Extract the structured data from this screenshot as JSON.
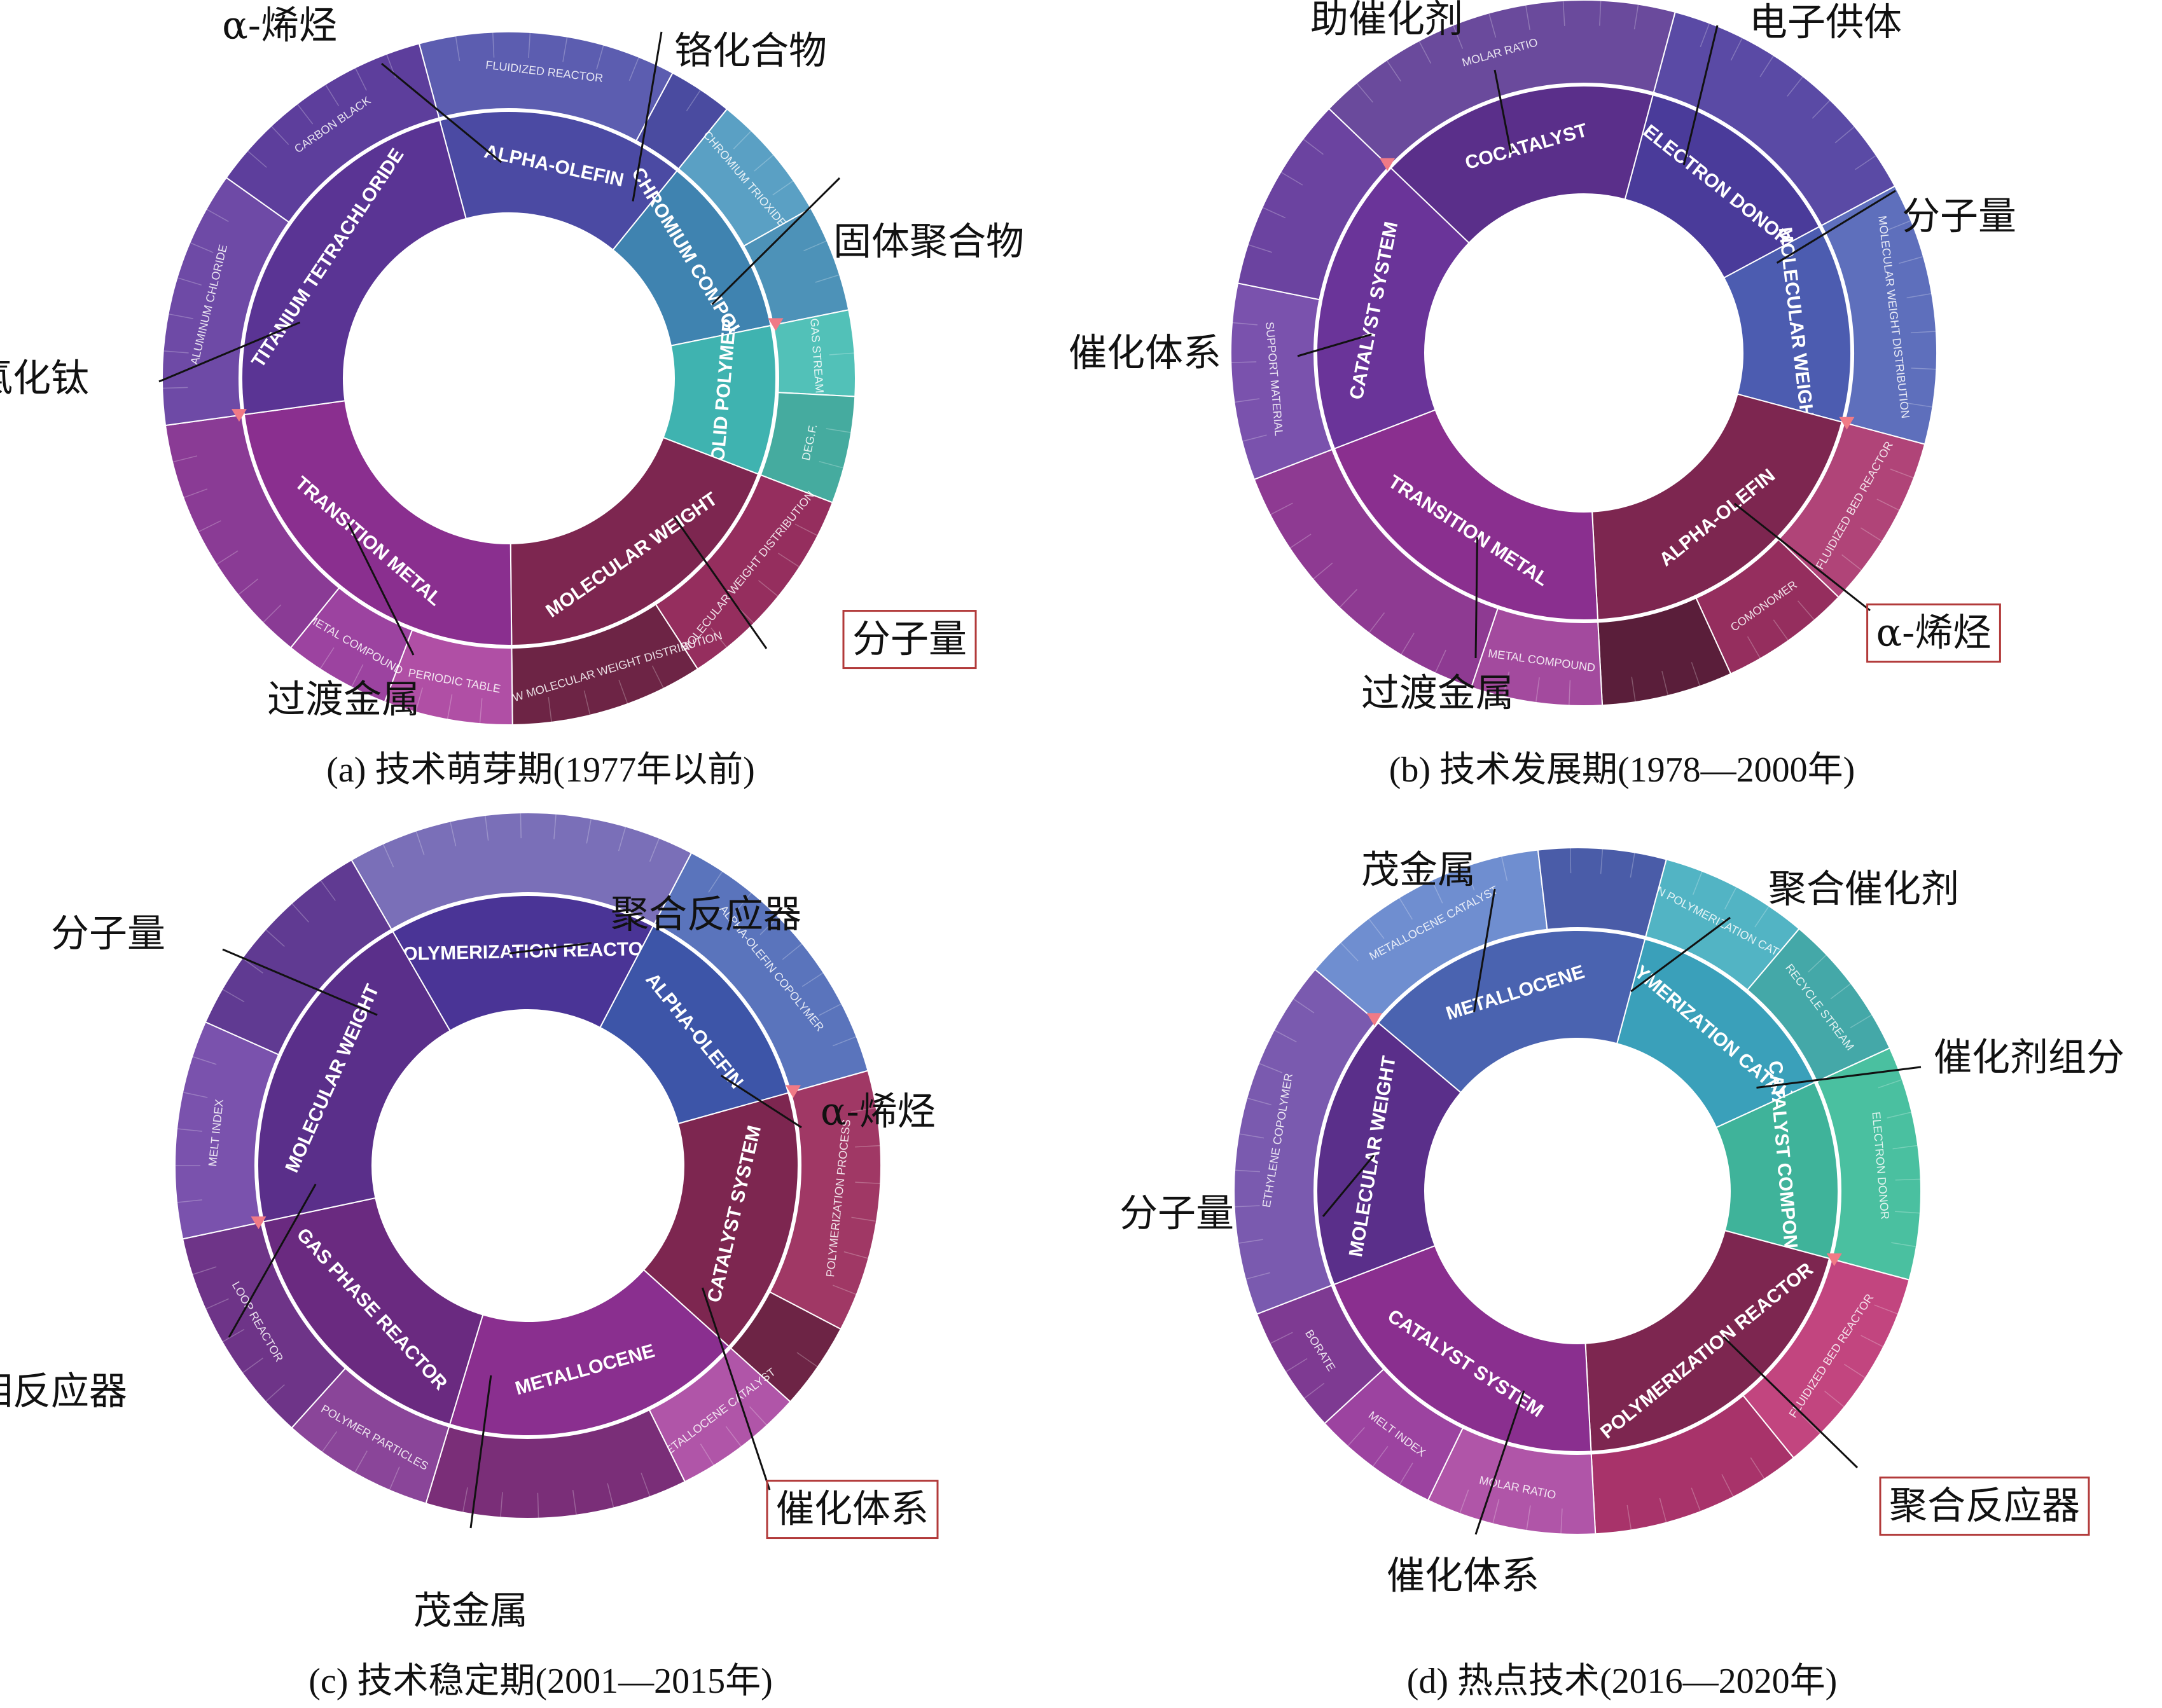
{
  "chart_data": [
    {
      "type": "sunburst",
      "caption": "(a) 技术萌芽期(1977年以前)",
      "inner": [
        {
          "label": "ALPHA-OLEFIN",
          "share": 0.15,
          "color": "#4b4aa3"
        },
        {
          "label": "CHROMIUM COMPOUND",
          "share": 0.11,
          "color": "#3f83b0"
        },
        {
          "label": "SOLID POLYMER",
          "share": 0.09,
          "color": "#3fb3b0"
        },
        {
          "label": "MOLECULAR WEIGHT",
          "share": 0.19,
          "color": "#7d2650"
        },
        {
          "label": "TRANSITION METAL",
          "share": 0.23,
          "color": "#8a2f8f"
        },
        {
          "label": "TITANIUM TETRACHLORIDE",
          "share": 0.23,
          "color": "#5a3494"
        }
      ],
      "outer": [
        {
          "label": "FLUIDIZED REACTOR",
          "parent": 0,
          "share": 0.12,
          "color": "#5c5db0"
        },
        {
          "label": "",
          "parent": 0,
          "share": 0.03,
          "color": "#4a4ba0"
        },
        {
          "label": "CHROMIUM TRIOXIDE",
          "parent": 1,
          "share": 0.06,
          "color": "#5aa0c4"
        },
        {
          "label": "",
          "parent": 1,
          "share": 0.05,
          "color": "#4d92b8"
        },
        {
          "label": "GAS STREAM",
          "parent": 2,
          "share": 0.04,
          "color": "#52c1b8"
        },
        {
          "label": "DEG.F.",
          "parent": 2,
          "share": 0.05,
          "color": "#45ab9f"
        },
        {
          "label": "MOLECULAR WEIGHT DISTRIBUTION",
          "parent": 3,
          "share": 0.1,
          "color": "#952e5e"
        },
        {
          "label": "NARROW MOLECULAR WEIGHT DISTRIBUTION",
          "parent": 3,
          "share": 0.09,
          "color": "#6d2445"
        },
        {
          "label": "PERIODIC TABLE",
          "parent": 4,
          "share": 0.06,
          "color": "#b04fa5"
        },
        {
          "label": "METAL COMPOUND",
          "parent": 4,
          "share": 0.05,
          "color": "#9c43a0"
        },
        {
          "label": "",
          "parent": 4,
          "share": 0.12,
          "color": "#8a3b95"
        },
        {
          "label": "ALUMINUM CHLORIDE",
          "parent": 5,
          "share": 0.12,
          "color": "#6e4aa6"
        },
        {
          "label": "CARBON BLACK",
          "parent": 5,
          "share": 0.11,
          "color": "#5d3e9c"
        }
      ],
      "annotations": [
        "α-烯烃",
        "铬化合物",
        "固体聚合物",
        "四氯化钛",
        "过渡金属",
        "分子量"
      ],
      "highlight": "分子量"
    },
    {
      "type": "sunburst",
      "caption": "(b) 技术发展期(1978—2000年)",
      "inner": [
        {
          "label": "ELECTRON DONOR",
          "share": 0.13,
          "color": "#4a3b9a"
        },
        {
          "label": "MOLECULAR WEIGHT",
          "share": 0.12,
          "color": "#4c5cb0"
        },
        {
          "label": "ALPHA-OLEFIN",
          "share": 0.2,
          "color": "#7d2650"
        },
        {
          "label": "TRANSITION METAL",
          "share": 0.2,
          "color": "#8a2f8f"
        },
        {
          "label": "CATALYST SYSTEM",
          "share": 0.18,
          "color": "#6a3499"
        },
        {
          "label": "COCATALYST",
          "share": 0.17,
          "color": "#5a2f8a"
        }
      ],
      "outer": [
        {
          "label": "",
          "parent": 0,
          "share": 0.13,
          "color": "#5a4aa5"
        },
        {
          "label": "MOLECULAR WEIGHT DISTRIBUTION",
          "parent": 1,
          "share": 0.12,
          "color": "#5e6fbc"
        },
        {
          "label": "FLUIDIZED BED REACTOR",
          "parent": 2,
          "share": 0.08,
          "color": "#b04478"
        },
        {
          "label": "COMONOMER",
          "parent": 2,
          "share": 0.06,
          "color": "#952e5e"
        },
        {
          "label": "",
          "parent": 2,
          "share": 0.06,
          "color": "#5a1e3a"
        },
        {
          "label": "METAL COMPOUND",
          "parent": 3,
          "share": 0.06,
          "color": "#a34a9e"
        },
        {
          "label": "",
          "parent": 3,
          "share": 0.14,
          "color": "#8e3a92"
        },
        {
          "label": "SUPPORT MATERIAL",
          "parent": 4,
          "share": 0.09,
          "color": "#7a52ad"
        },
        {
          "label": "",
          "parent": 4,
          "share": 0.09,
          "color": "#6b43a0"
        },
        {
          "label": "MOLAR RATIO",
          "parent": 5,
          "share": 0.17,
          "color": "#6a4a9c"
        }
      ],
      "annotations": [
        "助催化剂",
        "电子供体",
        "分子量",
        "催化体系",
        "过渡金属",
        "α-烯烃"
      ],
      "highlight": "α-烯烃"
    },
    {
      "type": "sunburst",
      "caption": "(c) 技术稳定期(2001—2015年)",
      "inner": [
        {
          "label": "POLYMERIZATION REACTOR",
          "share": 0.16,
          "color": "#4a3496"
        },
        {
          "label": "ALPHA-OLEFIN",
          "share": 0.13,
          "color": "#3d55a8"
        },
        {
          "label": "CATALYST SYSTEM",
          "share": 0.16,
          "color": "#7d2650"
        },
        {
          "label": "METALLOCENE",
          "share": 0.18,
          "color": "#8a2f8f"
        },
        {
          "label": "GAS PHASE REACTOR",
          "share": 0.17,
          "color": "#6a2a80"
        },
        {
          "label": "MOLECULAR WEIGHT",
          "share": 0.2,
          "color": "#5a2f8a"
        }
      ],
      "outer": [
        {
          "label": "",
          "parent": 0,
          "share": 0.16,
          "color": "#7a6fb8"
        },
        {
          "label": "ALPHA-OLEFIN COPOLYMER",
          "parent": 1,
          "share": 0.13,
          "color": "#5a74bc"
        },
        {
          "label": "POLYMERIZATION PROCESS",
          "parent": 2,
          "share": 0.12,
          "color": "#a03865"
        },
        {
          "label": "",
          "parent": 2,
          "share": 0.04,
          "color": "#6d2445"
        },
        {
          "label": "METALLOCENE CATALYST",
          "parent": 3,
          "share": 0.06,
          "color": "#b055a8"
        },
        {
          "label": "",
          "parent": 3,
          "share": 0.12,
          "color": "#7a2e78"
        },
        {
          "label": "POLYMER PARTICLES",
          "parent": 4,
          "share": 0.07,
          "color": "#8a4599"
        },
        {
          "label": "LOOP REACTOR",
          "parent": 4,
          "share": 0.1,
          "color": "#6e3488"
        },
        {
          "label": "MELT INDEX",
          "parent": 5,
          "share": 0.1,
          "color": "#7a52ad"
        },
        {
          "label": "",
          "parent": 5,
          "share": 0.1,
          "color": "#603a92"
        }
      ],
      "annotations": [
        "聚合反应器",
        "分子量",
        "α-烯烃",
        "气相反应器",
        "茂金属",
        "催化体系"
      ],
      "highlight": "催化体系"
    },
    {
      "type": "sunburst",
      "caption": "(d) 热点技术(2016—2020年)",
      "inner": [
        {
          "label": "POLYMERIZATION CATALYST",
          "share": 0.14,
          "color": "#3aa0ba"
        },
        {
          "label": "CATALYST COMPONENT",
          "share": 0.11,
          "color": "#3fb39a"
        },
        {
          "label": "POLYMERIZATION REACTOR",
          "share": 0.2,
          "color": "#7d2650"
        },
        {
          "label": "CATALYST SYSTEM",
          "share": 0.2,
          "color": "#8a2f8f"
        },
        {
          "label": "MOLECULAR WEIGHT",
          "share": 0.17,
          "color": "#5a2f8a"
        },
        {
          "label": "METALLOCENE",
          "share": 0.18,
          "color": "#4a63b0"
        }
      ],
      "outer": [
        {
          "label": "OLEFIN POLYMERIZATION CATALYST",
          "parent": 0,
          "share": 0.07,
          "color": "#52b4c4"
        },
        {
          "label": "RECYCLE STREAM",
          "parent": 0,
          "share": 0.07,
          "color": "#44a8a8"
        },
        {
          "label": "ELECTRON DONOR",
          "parent": 1,
          "share": 0.11,
          "color": "#4ac0a0"
        },
        {
          "label": "FLUIDIZED BED REACTOR",
          "parent": 2,
          "share": 0.1,
          "color": "#c2457f"
        },
        {
          "label": "",
          "parent": 2,
          "share": 0.1,
          "color": "#a8336a"
        },
        {
          "label": "MOLAR RATIO",
          "parent": 3,
          "share": 0.08,
          "color": "#b055a8"
        },
        {
          "label": "MELT INDEX",
          "parent": 3,
          "share": 0.06,
          "color": "#9c43a0"
        },
        {
          "label": "BORATE",
          "parent": 3,
          "share": 0.06,
          "color": "#7e3a92"
        },
        {
          "label": "ETHYLENE COPOLYMER",
          "parent": 4,
          "share": 0.17,
          "color": "#7a5aaf"
        },
        {
          "label": "METALLOCENE CATALYST",
          "parent": 5,
          "share": 0.12,
          "color": "#6f8ed0"
        },
        {
          "label": "",
          "parent": 5,
          "share": 0.06,
          "color": "#4a5ca8"
        }
      ],
      "annotations": [
        "茂金属",
        "聚合催化剂",
        "催化剂组分",
        "分子量",
        "催化体系",
        "聚合反应器"
      ],
      "highlight": "聚合反应器"
    }
  ]
}
